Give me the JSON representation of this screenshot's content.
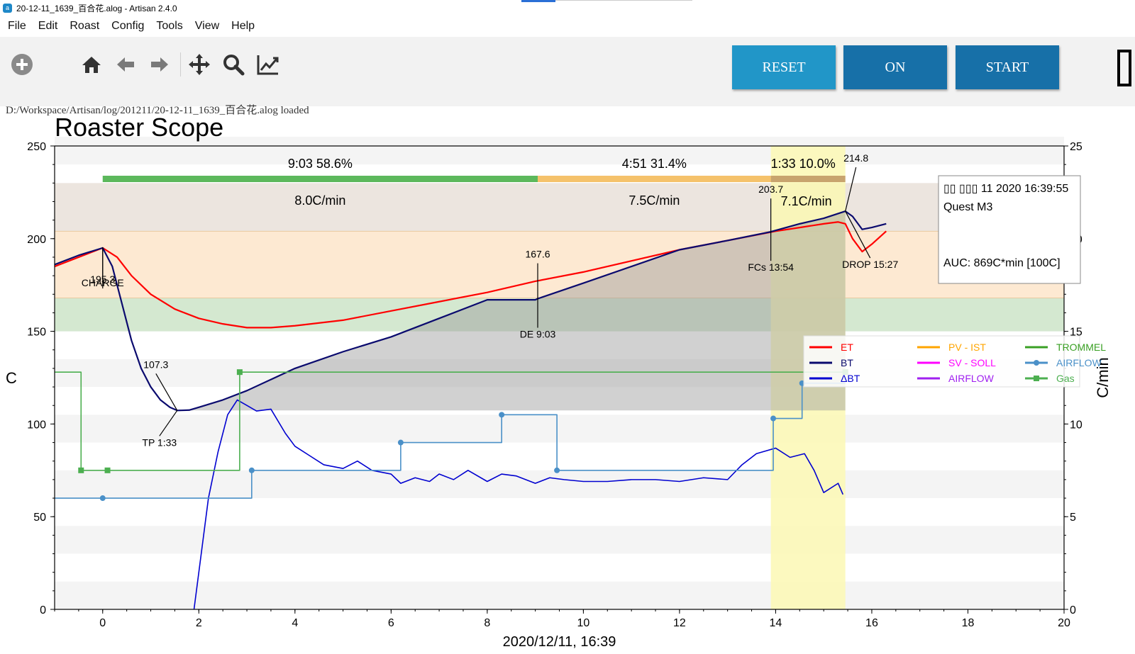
{
  "window": {
    "title": "20-12-11_1639_百合花.alog - Artisan 2.4.0"
  },
  "menu": [
    "File",
    "Edit",
    "Roast",
    "Config",
    "Tools",
    "View",
    "Help"
  ],
  "toolbar": {
    "icons": [
      "add-icon",
      "home-icon",
      "back-arrow-icon",
      "forward-arrow-icon",
      "pan-icon",
      "zoom-icon",
      "chart-icon"
    ],
    "buttons": {
      "reset": {
        "label": "RESET",
        "color": "#2196c8"
      },
      "on": {
        "label": "ON",
        "color": "#1770a8"
      },
      "start": {
        "label": "START",
        "color": "#1770a8"
      }
    },
    "lcd_digit": "0"
  },
  "status": {
    "message": "D:/Workspace/Artisan/log/201211/20-12-11_1639_百合花.alog  loaded"
  },
  "chart_data": {
    "type": "line",
    "title": "Roaster Scope",
    "xlabel": "2020/12/11, 16:39",
    "ylabel": "C",
    "y2label": "C/min",
    "xlim": [
      -1,
      20
    ],
    "ylim": [
      0,
      250
    ],
    "y2lim": [
      0,
      25
    ],
    "xticks": [
      0,
      2,
      4,
      6,
      8,
      10,
      12,
      14,
      16,
      18,
      20
    ],
    "yticks": [
      0,
      50,
      100,
      150,
      200,
      250
    ],
    "y2ticks": [
      0,
      5,
      10,
      15,
      20,
      25
    ],
    "phase_bands": [
      {
        "from": 150,
        "to": 168,
        "color": "#d4e8d0"
      },
      {
        "from": 168,
        "to": 204,
        "color": "#fde9d2"
      },
      {
        "from": 204,
        "to": 230,
        "color": "#ece5df"
      }
    ],
    "phases": [
      {
        "time": "9:03",
        "pct": "58.6%",
        "ror": "8.0C/min",
        "start": 0,
        "end": 9.05,
        "color": "#5cb85c"
      },
      {
        "time": "4:51",
        "pct": "31.4%",
        "ror": "7.5C/min",
        "start": 9.05,
        "end": 13.9,
        "color": "#f5c26b"
      },
      {
        "time": "1:33",
        "pct": "10.0%",
        "ror": "7.1C/min",
        "start": 13.9,
        "end": 15.45,
        "color": "#c8a46e"
      }
    ],
    "development_zone": {
      "start": 13.9,
      "end": 15.45,
      "color": "#fbf8b4"
    },
    "events": [
      {
        "label": "CHARGE",
        "x": 0,
        "y": 195.3,
        "value": "195.3"
      },
      {
        "label": "TP 1:33",
        "x": 1.55,
        "y": 107.3,
        "value": "107.3"
      },
      {
        "label": "DE 9:03",
        "x": 9.05,
        "y": 167.6,
        "value": "167.6"
      },
      {
        "label": "FCs 13:54",
        "x": 13.9,
        "y": 203.7,
        "value": "203.7"
      },
      {
        "label": "DROP 15:27",
        "x": 15.45,
        "y": 214.8,
        "value": "214.8"
      }
    ],
    "info_box": {
      "date": "▯▯ ▯▯▯ 11 2020 16:39:55",
      "machine": "Quest M3",
      "auc": "AUC: 869C*min [100C]"
    },
    "legend": [
      {
        "name": "ET",
        "color": "#ff0000",
        "marker": false
      },
      {
        "name": "PV - IST",
        "color": "#ffa500",
        "marker": false
      },
      {
        "name": "TROMMEL",
        "color": "#3aa024",
        "marker": false
      },
      {
        "name": "BT",
        "color": "#0a0a6e",
        "marker": false
      },
      {
        "name": "SV - SOLL",
        "color": "#ff00ff",
        "marker": false
      },
      {
        "name": "AIRFLOW",
        "color": "#4a90c8",
        "marker": true
      },
      {
        "name": "ΔBT",
        "color": "#0000d0",
        "marker": false
      },
      {
        "name": "AIRFLOW",
        "color": "#a020f0",
        "marker": false
      },
      {
        "name": "Gas",
        "color": "#4caf50",
        "marker": true
      }
    ],
    "series": [
      {
        "name": "ET",
        "color": "#ff0000",
        "axis": "left",
        "x": [
          -1,
          -0.5,
          0,
          0.3,
          0.6,
          1,
          1.5,
          2,
          2.5,
          3,
          3.5,
          4,
          5,
          6,
          7,
          8,
          9,
          10,
          11,
          12,
          13,
          14,
          14.5,
          15,
          15.3,
          15.45,
          15.6,
          15.8,
          16,
          16.3
        ],
        "y": [
          185,
          190,
          195,
          190,
          180,
          170,
          162,
          157,
          154,
          152,
          152,
          153,
          156,
          161,
          166,
          171,
          177,
          182,
          188,
          194,
          199,
          204,
          206,
          208,
          209,
          208,
          200,
          193,
          197,
          204
        ]
      },
      {
        "name": "BT",
        "color": "#0a0a6e",
        "axis": "left",
        "x": [
          -1,
          -0.5,
          0,
          0.2,
          0.4,
          0.6,
          0.8,
          1,
          1.2,
          1.4,
          1.55,
          1.8,
          2,
          2.5,
          3,
          3.5,
          4,
          5,
          6,
          7,
          8,
          9,
          9.05,
          10,
          11,
          12,
          13,
          13.9,
          14.5,
          15,
          15.45,
          15.6,
          15.8,
          16,
          16.3
        ],
        "y": [
          186,
          191,
          195,
          185,
          165,
          145,
          130,
          120,
          113,
          109,
          107.3,
          107.5,
          109,
          113,
          118,
          124,
          130,
          139,
          147,
          157,
          167,
          167,
          167.6,
          176,
          185,
          194,
          199,
          203.7,
          208,
          211,
          214.8,
          212,
          205,
          206,
          208
        ]
      },
      {
        "name": "ΔBT",
        "color": "#0000d0",
        "axis": "right",
        "x": [
          1.9,
          2,
          2.2,
          2.4,
          2.6,
          2.8,
          3,
          3.2,
          3.5,
          3.8,
          4,
          4.3,
          4.6,
          5,
          5.3,
          5.6,
          6,
          6.2,
          6.5,
          6.8,
          7,
          7.3,
          7.6,
          8,
          8.3,
          8.6,
          9,
          9.3,
          9.6,
          10,
          10.5,
          11,
          11.5,
          12,
          12.5,
          13,
          13.3,
          13.6,
          14,
          14.3,
          14.6,
          14.8,
          15,
          15.3,
          15.4
        ],
        "y": [
          0,
          2,
          6,
          8.5,
          10.5,
          11.3,
          11,
          10.7,
          10.8,
          9.5,
          8.8,
          8.3,
          7.8,
          7.6,
          8,
          7.5,
          7.3,
          6.8,
          7.1,
          6.9,
          7.3,
          7,
          7.5,
          6.9,
          7.3,
          7.2,
          6.8,
          7.1,
          7.0,
          6.9,
          6.9,
          7.0,
          7.0,
          6.9,
          7.1,
          7.0,
          7.8,
          8.4,
          8.7,
          8.2,
          8.4,
          7.5,
          6.3,
          6.8,
          6.2
        ]
      },
      {
        "name": "AIRFLOW",
        "color": "#4a90c8",
        "axis": "right",
        "step": true,
        "markers": [
          0,
          3.1,
          6.2,
          8.3,
          9.45,
          13.95,
          14.55
        ],
        "x": [
          -1,
          0,
          3.1,
          6.2,
          8.3,
          9.45,
          13.95,
          14.55,
          15.45
        ],
        "y": [
          6,
          6,
          7.5,
          9,
          10.5,
          7.5,
          10.3,
          12.2,
          12.2
        ]
      },
      {
        "name": "Gas",
        "color": "#4caf50",
        "axis": "right",
        "step": true,
        "markers": [
          -0.45,
          0.1,
          2.85,
          15.45
        ],
        "x": [
          -1,
          -0.45,
          0.1,
          2.85,
          15.45
        ],
        "y": [
          12.8,
          7.5,
          7.5,
          12.8,
          12.8
        ]
      }
    ]
  }
}
